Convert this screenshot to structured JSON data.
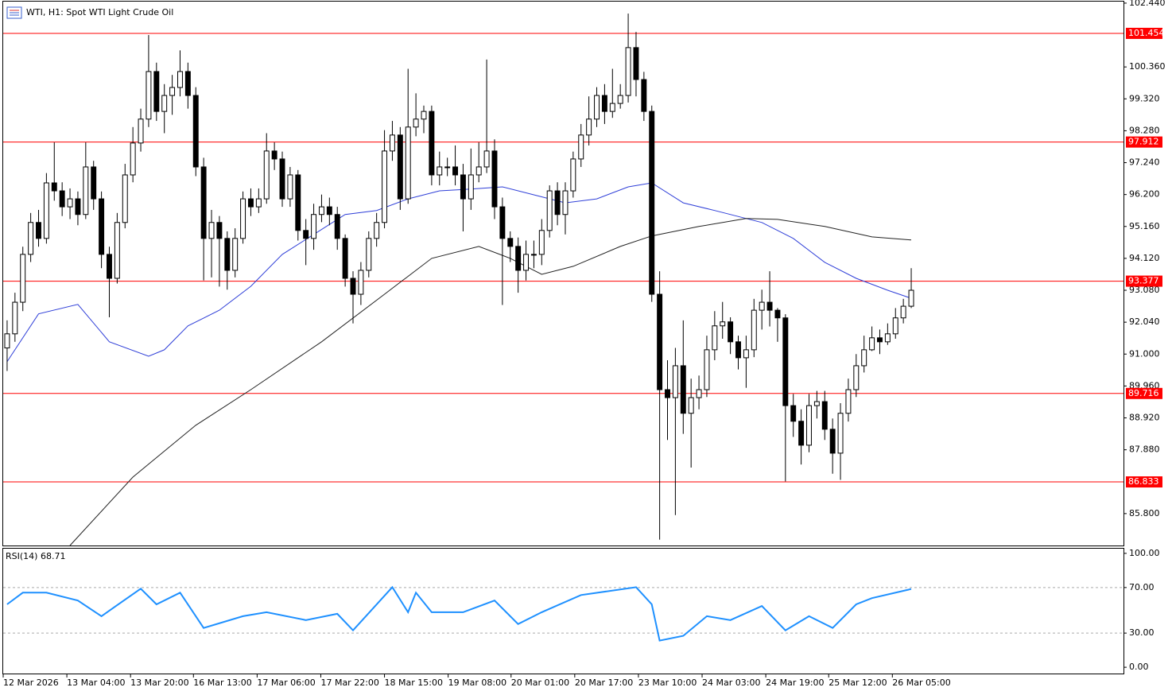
{
  "chart_data": [
    {
      "type": "candlestick",
      "title": "WTI, H1:  Spot WTI Light Crude Oil",
      "open": [
        91.2,
        91.66,
        92.69,
        94.25,
        95.29,
        94.77,
        96.58,
        96.32,
        95.8,
        96.06,
        95.55,
        97.1,
        96.06,
        94.25,
        93.47,
        95.29,
        96.84,
        97.88,
        98.66,
        100.21,
        98.91,
        99.43,
        99.69,
        100.21,
        99.43,
        97.1,
        94.77,
        95.29,
        94.77,
        93.73,
        94.77,
        96.06,
        95.8,
        96.06,
        97.62,
        97.36,
        96.06,
        96.84,
        95.03,
        94.77,
        95.55,
        95.8,
        95.55,
        94.77,
        93.47,
        92.95,
        93.73,
        94.77,
        95.29,
        97.62,
        98.14,
        96.06,
        98.4,
        98.66,
        98.91,
        96.84,
        97.1,
        97.1,
        96.84,
        96.06,
        96.84,
        97.1,
        97.62,
        95.8,
        94.77,
        94.51,
        93.73,
        94.25,
        94.25,
        95.03,
        96.32,
        95.55,
        96.32,
        97.36,
        98.14,
        98.66,
        99.43,
        98.91,
        99.17,
        99.43,
        100.99,
        99.95,
        98.91,
        92.95,
        89.84,
        89.58,
        90.62,
        89.07,
        89.58,
        89.84,
        91.14,
        91.92,
        92.05,
        91.4,
        90.88,
        91.14,
        92.43,
        92.69,
        92.43,
        92.18,
        89.32,
        88.81,
        88.03,
        89.32,
        89.45,
        88.55,
        87.77,
        89.07,
        89.84,
        90.62,
        91.14,
        91.53,
        91.4,
        91.66,
        92.18,
        92.56
      ],
      "high": [
        92.1,
        93.0,
        94.5,
        95.6,
        95.7,
        96.9,
        97.9,
        96.6,
        96.4,
        96.3,
        97.9,
        97.3,
        96.3,
        94.5,
        95.6,
        97.2,
        98.4,
        99.0,
        101.4,
        100.5,
        99.8,
        100.1,
        100.9,
        100.5,
        99.7,
        97.4,
        95.7,
        95.5,
        95.0,
        95.1,
        96.3,
        96.4,
        96.4,
        98.2,
        97.9,
        97.6,
        97.1,
        97.0,
        95.4,
        95.9,
        96.2,
        96.1,
        95.8,
        94.9,
        93.7,
        94.0,
        95.0,
        95.6,
        98.3,
        98.6,
        98.4,
        100.3,
        99.5,
        99.1,
        99.1,
        97.6,
        97.4,
        97.8,
        97.2,
        97.7,
        97.9,
        100.6,
        98.0,
        96.1,
        95.0,
        94.8,
        94.7,
        94.7,
        95.4,
        96.5,
        96.6,
        96.6,
        97.6,
        98.5,
        99.4,
        99.7,
        99.8,
        100.3,
        99.8,
        102.1,
        101.5,
        100.2,
        99.1,
        93.7,
        90.8,
        91.2,
        92.1,
        90.2,
        90.3,
        91.6,
        92.4,
        92.7,
        92.2,
        91.6,
        91.6,
        92.8,
        93.1,
        93.7,
        92.5,
        92.3,
        89.7,
        89.2,
        89.7,
        89.8,
        89.8,
        88.9,
        89.4,
        90.2,
        91.0,
        91.6,
        91.9,
        91.8,
        92.0,
        92.5,
        92.8,
        93.8
      ],
      "low": [
        90.45,
        91.4,
        92.4,
        94.0,
        94.5,
        94.6,
        96.0,
        95.5,
        95.4,
        95.2,
        95.4,
        95.7,
        93.8,
        92.2,
        93.3,
        95.1,
        96.6,
        97.6,
        98.4,
        98.6,
        98.2,
        98.8,
        99.4,
        99.0,
        96.8,
        93.4,
        93.5,
        93.2,
        93.1,
        93.5,
        94.6,
        95.5,
        95.6,
        95.9,
        97.0,
        95.8,
        95.8,
        94.7,
        93.9,
        94.4,
        95.3,
        95.2,
        94.4,
        93.2,
        92.0,
        92.6,
        93.5,
        94.5,
        95.1,
        97.3,
        95.7,
        95.9,
        98.1,
        98.2,
        96.5,
        96.5,
        96.8,
        96.5,
        95.0,
        95.7,
        96.6,
        96.9,
        95.4,
        92.6,
        94.0,
        93.0,
        93.4,
        93.8,
        93.9,
        94.8,
        95.2,
        94.9,
        96.1,
        97.1,
        97.8,
        98.4,
        98.5,
        98.7,
        99.0,
        99.2,
        99.4,
        98.6,
        92.7,
        84.95,
        88.2,
        85.75,
        88.4,
        87.3,
        89.2,
        89.6,
        90.8,
        91.5,
        91.0,
        90.5,
        89.9,
        90.9,
        91.8,
        91.9,
        91.4,
        86.85,
        88.3,
        87.4,
        87.8,
        88.9,
        88.2,
        87.1,
        86.9,
        88.8,
        89.6,
        90.4,
        91.1,
        91.0,
        91.3,
        91.5,
        92.0,
        92.5
      ],
      "close": [
        91.66,
        92.69,
        94.25,
        95.29,
        94.77,
        96.58,
        96.32,
        95.8,
        96.06,
        95.55,
        97.1,
        96.06,
        94.25,
        93.47,
        95.29,
        96.84,
        97.88,
        98.66,
        100.21,
        98.91,
        99.43,
        99.69,
        100.21,
        99.43,
        97.1,
        94.77,
        95.29,
        94.77,
        93.73,
        94.77,
        96.06,
        95.8,
        96.06,
        97.62,
        97.36,
        96.06,
        96.84,
        95.03,
        94.77,
        95.55,
        95.8,
        95.55,
        94.77,
        93.47,
        92.95,
        93.73,
        94.77,
        95.29,
        97.62,
        98.14,
        96.06,
        98.4,
        98.66,
        98.91,
        96.84,
        97.1,
        97.1,
        96.84,
        96.06,
        96.84,
        97.1,
        97.62,
        95.8,
        94.77,
        94.51,
        93.73,
        94.25,
        94.25,
        95.03,
        96.32,
        95.55,
        96.32,
        97.36,
        98.14,
        98.66,
        99.43,
        98.91,
        99.17,
        99.43,
        100.99,
        99.95,
        98.91,
        92.95,
        89.84,
        89.58,
        90.62,
        89.07,
        89.58,
        89.84,
        91.14,
        91.92,
        92.05,
        91.4,
        90.88,
        91.14,
        92.43,
        92.69,
        92.43,
        92.18,
        89.32,
        88.81,
        88.03,
        89.32,
        89.45,
        88.55,
        87.77,
        89.07,
        89.84,
        90.62,
        91.14,
        91.53,
        91.4,
        91.66,
        92.18,
        92.56,
        93.08
      ],
      "up_color": "#ffffff",
      "down_color": "#000000",
      "series": [
        {
          "color": "#2f3fd8",
          "x": [
            0,
            4,
            9,
            13,
            18,
            20,
            23,
            27,
            31,
            35,
            39,
            43,
            47,
            51,
            55,
            59,
            63,
            67,
            71,
            75,
            79,
            82,
            86,
            90,
            96,
            100,
            104,
            108,
            112,
            115
          ],
          "values": [
            90.75,
            92.31,
            92.62,
            91.4,
            90.93,
            91.14,
            91.92,
            92.43,
            93.21,
            94.25,
            94.9,
            95.55,
            95.68,
            96.06,
            96.32,
            96.38,
            96.45,
            96.19,
            95.93,
            96.06,
            96.45,
            96.58,
            95.93,
            95.68,
            95.29,
            94.77,
            93.99,
            93.47,
            93.08,
            92.82
          ]
        },
        {
          "color": "#222222",
          "x": [
            8,
            16,
            24,
            31,
            40,
            48,
            54,
            60,
            64,
            68,
            72,
            78,
            82,
            88,
            94,
            98,
            104,
            110,
            115
          ],
          "values": [
            84.76,
            86.99,
            88.68,
            89.84,
            91.4,
            92.95,
            94.12,
            94.51,
            94.12,
            93.6,
            93.86,
            94.51,
            94.85,
            95.16,
            95.42,
            95.39,
            95.16,
            94.82,
            94.72
          ]
        }
      ],
      "levels": [
        101.454,
        97.912,
        93.377,
        89.716,
        86.833
      ],
      "level_color": "#ff0000",
      "xlim": [
        -0.5,
        142
      ],
      "ylim": [
        84.76,
        102.49
      ],
      "yticks": [
        {
          "value": 102.44,
          "label": "102.440"
        },
        {
          "value": 100.36,
          "label": "100.360"
        },
        {
          "value": 99.32,
          "label": "99.320"
        },
        {
          "value": 98.28,
          "label": "98.280"
        },
        {
          "value": 97.24,
          "label": "97.240"
        },
        {
          "value": 96.2,
          "label": "96.200"
        },
        {
          "value": 95.16,
          "label": "95.160"
        },
        {
          "value": 94.12,
          "label": "94.120"
        },
        {
          "value": 93.08,
          "label": "93.080"
        },
        {
          "value": 92.04,
          "label": "92.040"
        },
        {
          "value": 91,
          "label": "91.000"
        },
        {
          "value": 89.96,
          "label": "89.960"
        },
        {
          "value": 88.92,
          "label": "88.920"
        },
        {
          "value": 87.88,
          "label": "87.880"
        },
        {
          "value": 85.8,
          "label": "85.800"
        }
      ],
      "xticks": [
        {
          "value": -0.5,
          "label": "12 Mar 2026"
        },
        {
          "value": 7.6,
          "label": "13 Mar 04:00"
        },
        {
          "value": 15.7,
          "label": "13 Mar 20:00"
        },
        {
          "value": 23.7,
          "label": "16 Mar 13:00"
        },
        {
          "value": 31.8,
          "label": "17 Mar 06:00"
        },
        {
          "value": 39.9,
          "label": "17 Mar 22:00"
        },
        {
          "value": 48,
          "label": "18 Mar 15:00"
        },
        {
          "value": 56.1,
          "label": "19 Mar 08:00"
        },
        {
          "value": 64.1,
          "label": "20 Mar 01:00"
        },
        {
          "value": 72.2,
          "label": "20 Mar 17:00"
        },
        {
          "value": 80.3,
          "label": "23 Mar 10:00"
        },
        {
          "value": 88.4,
          "label": "24 Mar 03:00"
        },
        {
          "value": 96.5,
          "label": "24 Mar 19:00"
        },
        {
          "value": 104.5,
          "label": "25 Mar 12:00"
        },
        {
          "value": 112.6,
          "label": "26 Mar 05:00"
        }
      ]
    },
    {
      "type": "line",
      "title": "RSI(14) 68.71",
      "series": [
        {
          "color": "#1e90ff",
          "x": [
            0,
            2,
            5,
            9,
            12,
            13,
            17,
            19,
            22,
            25,
            30,
            33,
            38,
            42,
            44,
            49,
            51,
            52,
            54,
            58,
            62,
            65,
            68,
            73,
            80,
            82,
            83,
            86,
            89,
            92,
            96,
            99,
            102,
            105,
            108,
            110,
            115
          ],
          "values": [
            55.2,
            65.5,
            65.5,
            58.6,
            44.8,
            49.7,
            69,
            55.2,
            65.5,
            34.5,
            44.8,
            48.3,
            41.4,
            46.9,
            32.4,
            70.3,
            48.3,
            65.5,
            48.3,
            48.3,
            58.6,
            37.9,
            48.3,
            63.4,
            70.3,
            55.2,
            23.4,
            27.6,
            44.8,
            41.4,
            53.8,
            32.4,
            44.8,
            34.5,
            55.2,
            60.7,
            68.71
          ]
        }
      ],
      "levels": [
        70,
        30
      ],
      "xlim": [
        -0.5,
        142
      ],
      "ylim": [
        -5.5,
        104.1
      ],
      "yticks": [
        {
          "value": 100,
          "label": "100.00"
        },
        {
          "value": 70,
          "label": "70.00"
        },
        {
          "value": 30,
          "label": "30.00"
        },
        {
          "value": 0,
          "label": "0.00"
        }
      ]
    }
  ]
}
